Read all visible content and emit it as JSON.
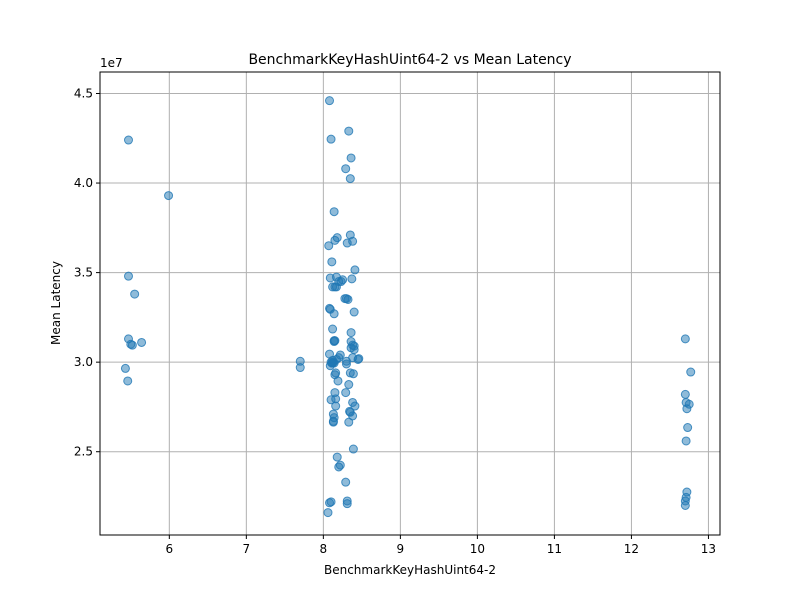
{
  "chart_data": {
    "type": "scatter",
    "title": "BenchmarkKeyHashUint64-2 vs Mean Latency",
    "xlabel": "BenchmarkKeyHashUint64-2",
    "ylabel": "Mean Latency",
    "y_offset_label": "1e7",
    "xlim": [
      5.1,
      13.15
    ],
    "ylim": [
      20350000,
      46200000
    ],
    "x_ticks": [
      6,
      7,
      8,
      9,
      10,
      11,
      12,
      13
    ],
    "x_tick_labels": [
      "6",
      "7",
      "8",
      "9",
      "10",
      "11",
      "12",
      "13"
    ],
    "y_ticks": [
      25000000,
      30000000,
      35000000,
      40000000,
      45000000
    ],
    "y_tick_labels": [
      "2.5",
      "3.0",
      "3.5",
      "4.0",
      "4.5"
    ],
    "grid": true,
    "marker_color": "#1f77b4",
    "marker_alpha": 0.5,
    "x": [
      5.47,
      5.47,
      5.55,
      5.47,
      5.5,
      5.52,
      5.64,
      5.43,
      5.46,
      5.99,
      7.7,
      7.7,
      8.08,
      8.1,
      8.33,
      8.36,
      8.29,
      8.35,
      8.14,
      8.35,
      8.18,
      8.15,
      8.31,
      8.38,
      8.07,
      8.11,
      8.41,
      8.17,
      8.37,
      8.09,
      8.23,
      8.15,
      8.12,
      8.3,
      8.32,
      8.08,
      8.09,
      8.14,
      8.4,
      8.12,
      8.36,
      8.14,
      8.15,
      8.38,
      8.4,
      8.36,
      8.08,
      8.22,
      8.45,
      8.46,
      8.17,
      8.12,
      8.13,
      8.11,
      8.38,
      8.3,
      8.09,
      8.14,
      8.35,
      8.15,
      8.33,
      8.29,
      8.1,
      8.16,
      8.38,
      8.41,
      8.16,
      8.35,
      8.13,
      8.38,
      8.14,
      8.33,
      8.13,
      8.39,
      8.18,
      8.22,
      8.2,
      8.29,
      8.31,
      8.31,
      8.08,
      8.06,
      8.1,
      8.13,
      8.2,
      8.36,
      8.14,
      8.39,
      8.16,
      8.12,
      8.3,
      8.15,
      8.19,
      8.25,
      8.34,
      8.4,
      8.1,
      8.2,
      8.28,
      8.17,
      12.7,
      12.77,
      12.7,
      12.71,
      12.75,
      12.72,
      12.73,
      12.71,
      12.72,
      12.71,
      12.7,
      12.7
    ],
    "y": [
      42400000,
      34800000,
      33800000,
      31300000,
      31000000,
      30950000,
      31100000,
      29650000,
      28950000,
      39300000,
      30050000,
      29700000,
      44600000,
      42450000,
      42900000,
      41400000,
      40800000,
      40250000,
      38400000,
      37100000,
      36950000,
      36800000,
      36650000,
      36750000,
      36500000,
      35600000,
      35150000,
      34750000,
      34650000,
      34700000,
      34500000,
      34200000,
      34200000,
      33550000,
      33500000,
      33000000,
      32950000,
      32700000,
      32800000,
      31850000,
      31650000,
      31150000,
      31200000,
      30950000,
      30700000,
      30800000,
      30450000,
      30400000,
      30150000,
      30200000,
      30150000,
      30100000,
      30000000,
      29950000,
      30250000,
      29900000,
      29800000,
      29950000,
      29400000,
      29300000,
      28750000,
      28300000,
      27900000,
      27950000,
      27750000,
      27550000,
      27550000,
      27200000,
      27100000,
      27000000,
      26900000,
      26650000,
      26650000,
      25150000,
      24700000,
      24250000,
      24150000,
      23300000,
      22250000,
      22100000,
      22150000,
      21600000,
      22200000,
      26700000,
      30250000,
      31150000,
      31200000,
      29350000,
      29400000,
      29950000,
      30050000,
      28300000,
      28950000,
      34600000,
      27250000,
      30900000,
      30000000,
      34500000,
      33550000,
      34200000,
      31300000,
      29450000,
      28200000,
      27750000,
      27650000,
      27400000,
      26350000,
      25600000,
      22750000,
      22450000,
      22250000,
      22000000
    ]
  }
}
